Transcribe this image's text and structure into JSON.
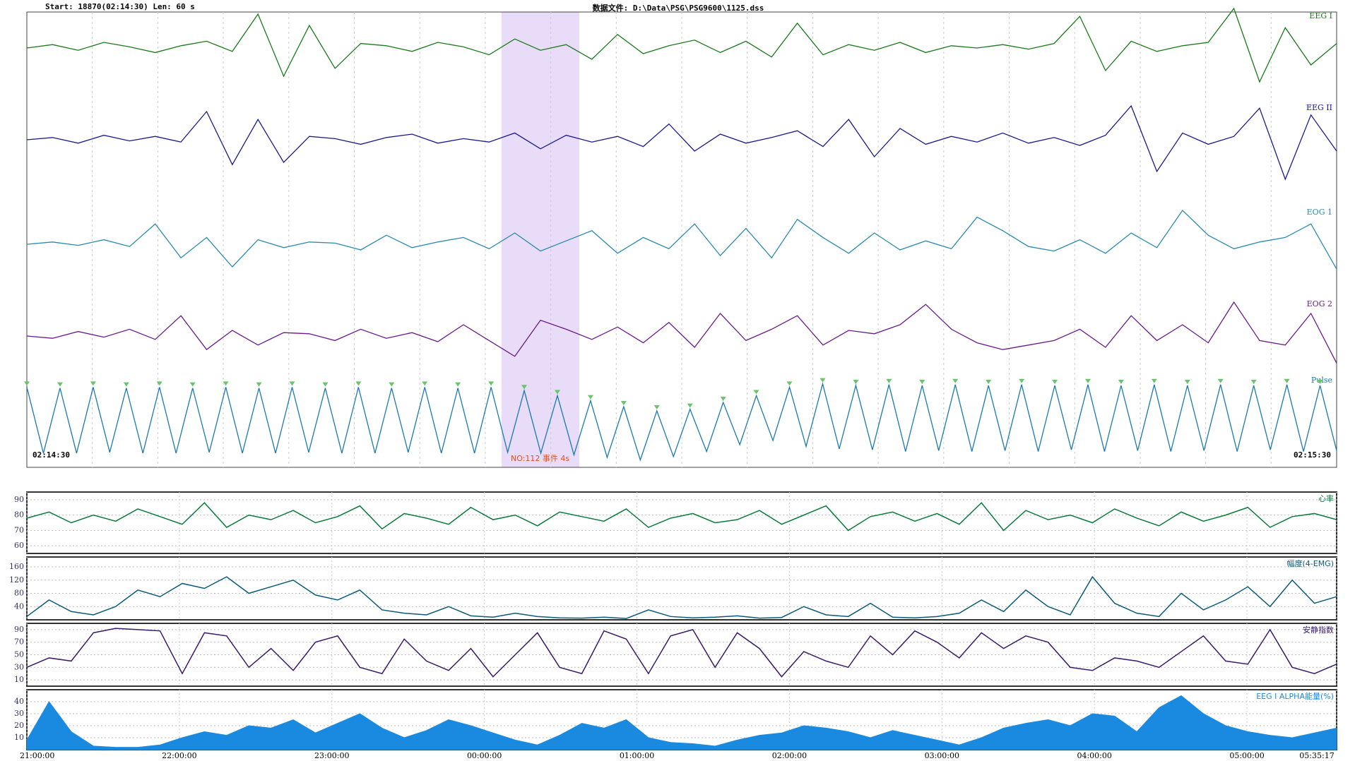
{
  "header": {
    "info": "Start:  18870(02:14:30)   Len:  60 s",
    "file": "数据文件: D:\\Data\\PSG\\PSG9600\\1125.dss"
  },
  "epoch": {
    "start_time": "02:14:30",
    "end_time": "02:15:30",
    "event_label": "NO:112 事件 4s",
    "traces": [
      {
        "name": "EEG I",
        "color": "#1a7a1a",
        "values": [
          0,
          3,
          -2,
          5,
          1,
          -4,
          2,
          6,
          -3,
          30,
          -25,
          20,
          -18,
          4,
          2,
          -3,
          5,
          1,
          -6,
          8,
          -2,
          3,
          -10,
          12,
          -5,
          2,
          7,
          -4,
          6,
          -8,
          22,
          -6,
          3,
          -2,
          5,
          -4,
          2,
          0,
          3,
          -1,
          4,
          28,
          -20,
          6,
          -3,
          2,
          5,
          35,
          -30,
          18,
          -15,
          4
        ]
      },
      {
        "name": "EEG II",
        "color": "#1a1a8c",
        "values": [
          0,
          2,
          -3,
          4,
          -1,
          3,
          -2,
          25,
          -22,
          18,
          -20,
          3,
          1,
          -4,
          2,
          5,
          -3,
          1,
          -2,
          6,
          -8,
          4,
          -2,
          3,
          -6,
          14,
          -10,
          5,
          -3,
          2,
          8,
          -6,
          18,
          -15,
          10,
          -4,
          3,
          -2,
          6,
          -3,
          2,
          -5,
          4,
          30,
          -28,
          6,
          -4,
          3,
          28,
          -35,
          22,
          -10
        ]
      },
      {
        "name": "EOG 1",
        "color": "#2a8ab0",
        "values": [
          0,
          2,
          -1,
          4,
          -2,
          18,
          -12,
          6,
          -20,
          4,
          -3,
          2,
          1,
          -5,
          8,
          -3,
          2,
          6,
          -4,
          10,
          -6,
          3,
          12,
          -8,
          6,
          -4,
          18,
          -10,
          14,
          -12,
          22,
          6,
          -8,
          10,
          -5,
          3,
          -4,
          24,
          12,
          -2,
          -6,
          4,
          -8,
          10,
          -3,
          30,
          8,
          -4,
          2,
          6,
          18,
          -22
        ]
      },
      {
        "name": "EOG 2",
        "color": "#6a1a8a",
        "values": [
          0,
          -2,
          4,
          -1,
          6,
          -3,
          18,
          -12,
          5,
          -8,
          3,
          2,
          -4,
          6,
          -2,
          3,
          -5,
          10,
          -4,
          -18,
          14,
          6,
          -3,
          8,
          -6,
          12,
          -10,
          20,
          -4,
          6,
          18,
          -8,
          5,
          2,
          10,
          28,
          6,
          -6,
          -12,
          -8,
          -4,
          6,
          -10,
          18,
          -4,
          10,
          -6,
          30,
          -4,
          -8,
          20,
          -24
        ]
      },
      {
        "name": "Pulse",
        "color": "#1a7ab0",
        "values": [
          38,
          -40,
          37,
          -40,
          38,
          -39,
          37,
          -40,
          38,
          -40,
          37,
          -39,
          38,
          -40,
          37,
          -40,
          38,
          -39,
          37,
          -40,
          38,
          -40,
          37,
          -39,
          38,
          -40,
          37,
          -40,
          38,
          -39,
          34,
          -40,
          28,
          -42,
          22,
          -45,
          15,
          -48,
          10,
          -44,
          12,
          -38,
          20,
          -30,
          28,
          -25,
          38,
          -32,
          42,
          -35,
          40,
          -36,
          41,
          -38,
          40,
          -37,
          41,
          -38,
          40,
          -37,
          41,
          -38,
          40,
          -36,
          41,
          -38,
          40,
          -37,
          41,
          -38,
          40,
          -37,
          41,
          -38,
          40,
          -36,
          41,
          -38,
          40,
          -37
        ]
      }
    ]
  },
  "trends": [
    {
      "name": "心率",
      "color": "#0a7a3a",
      "ylim": [
        55,
        95
      ],
      "yticks": [
        60,
        70,
        80,
        90
      ],
      "values": [
        78,
        82,
        75,
        80,
        76,
        84,
        79,
        74,
        88,
        72,
        80,
        77,
        83,
        75,
        79,
        86,
        71,
        81,
        78,
        74,
        85,
        77,
        80,
        73,
        82,
        79,
        76,
        84,
        72,
        78,
        81,
        75,
        77,
        83,
        74,
        80,
        86,
        70,
        79,
        82,
        76,
        81,
        74,
        88,
        70,
        83,
        77,
        80,
        75,
        84,
        78,
        73,
        82,
        76,
        80,
        85,
        72,
        79,
        81,
        77
      ]
    },
    {
      "name": "幅度(4-EMG)",
      "color": "#0a5a7a",
      "ylim": [
        0,
        190
      ],
      "yticks": [
        40,
        80,
        120,
        160
      ],
      "values": [
        10,
        60,
        25,
        15,
        40,
        90,
        70,
        110,
        95,
        130,
        80,
        100,
        120,
        75,
        60,
        90,
        30,
        20,
        15,
        40,
        12,
        8,
        20,
        10,
        6,
        5,
        8,
        4,
        30,
        10,
        6,
        8,
        12,
        5,
        7,
        40,
        15,
        10,
        50,
        8,
        6,
        10,
        20,
        60,
        25,
        90,
        40,
        15,
        130,
        50,
        20,
        10,
        80,
        30,
        60,
        100,
        40,
        120,
        50,
        70
      ]
    },
    {
      "name": "安静指数",
      "color": "#3a1a6a",
      "ylim": [
        0,
        100
      ],
      "yticks": [
        10,
        30,
        50,
        70,
        90
      ],
      "values": [
        30,
        45,
        40,
        85,
        92,
        90,
        88,
        20,
        85,
        80,
        30,
        60,
        25,
        70,
        80,
        30,
        20,
        75,
        40,
        25,
        60,
        15,
        50,
        85,
        30,
        20,
        88,
        75,
        20,
        80,
        90,
        30,
        85,
        60,
        15,
        55,
        40,
        30,
        80,
        50,
        88,
        70,
        45,
        85,
        60,
        80,
        70,
        30,
        25,
        45,
        40,
        30,
        55,
        80,
        40,
        35,
        90,
        30,
        20,
        35
      ]
    },
    {
      "name": "EEG I ALPHA能量(%)",
      "color": "#1a8ae0",
      "ylim": [
        0,
        50
      ],
      "yticks": [
        10,
        20,
        30,
        40
      ],
      "values": [
        8,
        40,
        15,
        3,
        2,
        2,
        4,
        10,
        15,
        12,
        20,
        18,
        25,
        14,
        22,
        30,
        18,
        10,
        16,
        25,
        20,
        14,
        8,
        4,
        12,
        22,
        18,
        25,
        10,
        6,
        5,
        3,
        8,
        12,
        14,
        20,
        18,
        15,
        10,
        16,
        12,
        8,
        4,
        10,
        18,
        22,
        25,
        20,
        30,
        28,
        15,
        35,
        45,
        30,
        20,
        15,
        12,
        10,
        14,
        18
      ]
    }
  ],
  "time_axis": {
    "xlim": [
      0,
      8.588
    ],
    "ticks": [
      {
        "value": 0,
        "label": "21:00:00"
      },
      {
        "value": 1,
        "label": "22:00:00"
      },
      {
        "value": 2,
        "label": "23:00:00"
      },
      {
        "value": 3,
        "label": "00:00:00"
      },
      {
        "value": 4,
        "label": "01:00:00"
      },
      {
        "value": 5,
        "label": "02:00:00"
      },
      {
        "value": 6,
        "label": "03:00:00"
      },
      {
        "value": 7,
        "label": "04:00:00"
      },
      {
        "value": 8,
        "label": "05:00:00"
      },
      {
        "value": 8.588,
        "label": "05:35:17"
      }
    ]
  }
}
